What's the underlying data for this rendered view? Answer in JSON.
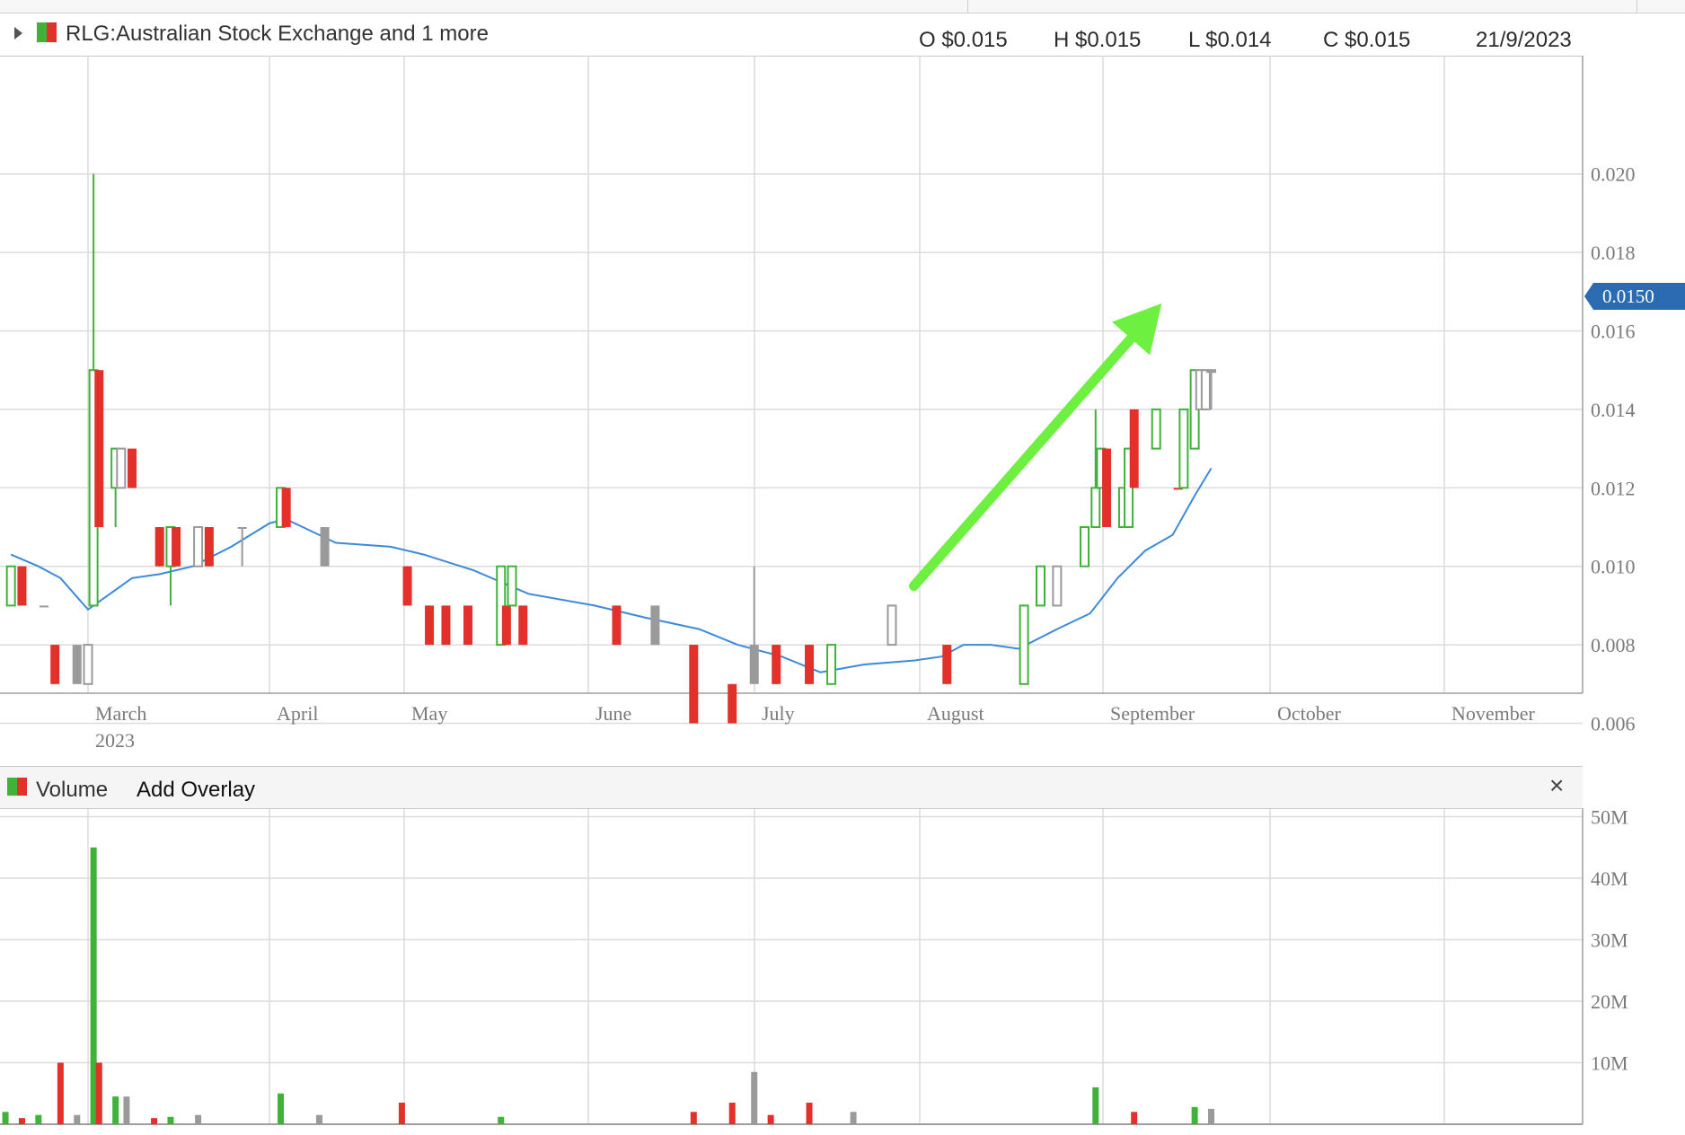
{
  "header": {
    "symbol_title": "RLG:Australian Stock Exchange and 1 more",
    "open": "O $0.015",
    "high": "H $0.015",
    "low": "L $0.014",
    "close": "C $0.015",
    "date": "21/9/2023"
  },
  "volume_panel": {
    "label": "Volume",
    "add_overlay": "Add Overlay",
    "close_symbol": "×"
  },
  "last_price_tag": "0.0150",
  "colors": {
    "up": "#3fb23a",
    "down": "#e2312a",
    "unchanged": "#9a9a9a",
    "moving_average": "#3d8ad8",
    "annotation_arrow": "#6ef040",
    "price_tag": "#2a6bb1",
    "grid": "#dcdcdc"
  },
  "chart_data": [
    {
      "type": "ohlc-candlestick",
      "title": "",
      "x_axis": {
        "tick_labels": [
          "March",
          "April",
          "May",
          "June",
          "July",
          "August",
          "September",
          "October",
          "November"
        ],
        "year_label": "2023"
      },
      "y_axis": {
        "side": "right",
        "ylim": [
          0.0049,
          0.0213
        ],
        "tick_values": [
          0.006,
          0.008,
          0.01,
          0.012,
          0.014,
          0.016,
          0.018,
          0.02
        ],
        "tick_labels": [
          "0.006",
          "0.008",
          "0.010",
          "0.012",
          "0.014",
          "0.016",
          "0.018",
          "0.020"
        ]
      },
      "grid": true,
      "candles": [
        {
          "date": "2023-02-15",
          "open": 0.009,
          "high": 0.01,
          "low": 0.009,
          "close": 0.01,
          "dir": "up"
        },
        {
          "date": "2023-02-17",
          "open": 0.01,
          "high": 0.01,
          "low": 0.009,
          "close": 0.009,
          "dir": "down"
        },
        {
          "date": "2023-02-21",
          "open": 0.009,
          "high": 0.009,
          "low": 0.009,
          "close": 0.009,
          "dir": "flat"
        },
        {
          "date": "2023-02-23",
          "open": 0.008,
          "high": 0.008,
          "low": 0.007,
          "close": 0.007,
          "dir": "down"
        },
        {
          "date": "2023-02-27",
          "open": 0.008,
          "high": 0.008,
          "low": 0.007,
          "close": 0.007,
          "dir": "flat"
        },
        {
          "date": "2023-03-01",
          "open": 0.007,
          "high": 0.008,
          "low": 0.007,
          "close": 0.008,
          "dir": "flat-hollow"
        },
        {
          "date": "2023-03-02",
          "open": 0.009,
          "high": 0.02,
          "low": 0.009,
          "close": 0.015,
          "dir": "up"
        },
        {
          "date": "2023-03-03",
          "open": 0.015,
          "high": 0.015,
          "low": 0.011,
          "close": 0.011,
          "dir": "down"
        },
        {
          "date": "2023-03-06",
          "open": 0.012,
          "high": 0.013,
          "low": 0.011,
          "close": 0.013,
          "dir": "up"
        },
        {
          "date": "2023-03-07",
          "open": 0.013,
          "high": 0.013,
          "low": 0.012,
          "close": 0.012,
          "dir": "flat-hollow"
        },
        {
          "date": "2023-03-09",
          "open": 0.013,
          "high": 0.013,
          "low": 0.012,
          "close": 0.012,
          "dir": "down"
        },
        {
          "date": "2023-03-14",
          "open": 0.011,
          "high": 0.011,
          "low": 0.01,
          "close": 0.01,
          "dir": "down"
        },
        {
          "date": "2023-03-16",
          "open": 0.01,
          "high": 0.011,
          "low": 0.009,
          "close": 0.011,
          "dir": "up"
        },
        {
          "date": "2023-03-17",
          "open": 0.011,
          "high": 0.011,
          "low": 0.01,
          "close": 0.01,
          "dir": "down"
        },
        {
          "date": "2023-03-21",
          "open": 0.01,
          "high": 0.011,
          "low": 0.01,
          "close": 0.011,
          "dir": "flat-hollow"
        },
        {
          "date": "2023-03-23",
          "open": 0.011,
          "high": 0.011,
          "low": 0.01,
          "close": 0.01,
          "dir": "down"
        },
        {
          "date": "2023-03-29",
          "open": 0.011,
          "high": 0.011,
          "low": 0.01,
          "close": 0.011,
          "dir": "flat"
        },
        {
          "date": "2023-04-05",
          "open": 0.011,
          "high": 0.012,
          "low": 0.011,
          "close": 0.012,
          "dir": "up"
        },
        {
          "date": "2023-04-06",
          "open": 0.012,
          "high": 0.012,
          "low": 0.011,
          "close": 0.011,
          "dir": "down"
        },
        {
          "date": "2023-04-13",
          "open": 0.011,
          "high": 0.011,
          "low": 0.01,
          "close": 0.01,
          "dir": "flat"
        },
        {
          "date": "2023-04-28",
          "open": 0.01,
          "high": 0.01,
          "low": 0.009,
          "close": 0.009,
          "dir": "down"
        },
        {
          "date": "2023-05-02",
          "open": 0.009,
          "high": 0.009,
          "low": 0.008,
          "close": 0.008,
          "dir": "down"
        },
        {
          "date": "2023-05-05",
          "open": 0.009,
          "high": 0.009,
          "low": 0.008,
          "close": 0.008,
          "dir": "down"
        },
        {
          "date": "2023-05-09",
          "open": 0.009,
          "high": 0.009,
          "low": 0.008,
          "close": 0.008,
          "dir": "down"
        },
        {
          "date": "2023-05-15",
          "open": 0.008,
          "high": 0.01,
          "low": 0.008,
          "close": 0.01,
          "dir": "up"
        },
        {
          "date": "2023-05-16",
          "open": 0.009,
          "high": 0.009,
          "low": 0.008,
          "close": 0.008,
          "dir": "down"
        },
        {
          "date": "2023-05-17",
          "open": 0.009,
          "high": 0.01,
          "low": 0.009,
          "close": 0.01,
          "dir": "up"
        },
        {
          "date": "2023-05-19",
          "open": 0.009,
          "high": 0.009,
          "low": 0.008,
          "close": 0.008,
          "dir": "down"
        },
        {
          "date": "2023-06-05",
          "open": 0.009,
          "high": 0.009,
          "low": 0.008,
          "close": 0.008,
          "dir": "down"
        },
        {
          "date": "2023-06-12",
          "open": 0.009,
          "high": 0.009,
          "low": 0.008,
          "close": 0.008,
          "dir": "flat"
        },
        {
          "date": "2023-06-19",
          "open": 0.008,
          "high": 0.008,
          "low": 0.006,
          "close": 0.006,
          "dir": "down"
        },
        {
          "date": "2023-06-26",
          "open": 0.007,
          "high": 0.007,
          "low": 0.006,
          "close": 0.006,
          "dir": "down"
        },
        {
          "date": "2023-06-30",
          "open": 0.008,
          "high": 0.01,
          "low": 0.007,
          "close": 0.007,
          "dir": "flat"
        },
        {
          "date": "2023-07-04",
          "open": 0.008,
          "high": 0.008,
          "low": 0.007,
          "close": 0.007,
          "dir": "down"
        },
        {
          "date": "2023-07-10",
          "open": 0.008,
          "high": 0.008,
          "low": 0.007,
          "close": 0.007,
          "dir": "down"
        },
        {
          "date": "2023-07-14",
          "open": 0.007,
          "high": 0.008,
          "low": 0.007,
          "close": 0.008,
          "dir": "up"
        },
        {
          "date": "2023-07-25",
          "open": 0.008,
          "high": 0.009,
          "low": 0.008,
          "close": 0.009,
          "dir": "flat-hollow"
        },
        {
          "date": "2023-08-04",
          "open": 0.008,
          "high": 0.008,
          "low": 0.007,
          "close": 0.007,
          "dir": "down"
        },
        {
          "date": "2023-08-18",
          "open": 0.007,
          "high": 0.009,
          "low": 0.007,
          "close": 0.009,
          "dir": "up"
        },
        {
          "date": "2023-08-21",
          "open": 0.009,
          "high": 0.01,
          "low": 0.009,
          "close": 0.01,
          "dir": "up"
        },
        {
          "date": "2023-08-24",
          "open": 0.009,
          "high": 0.01,
          "low": 0.009,
          "close": 0.01,
          "dir": "flat-hollow"
        },
        {
          "date": "2023-08-29",
          "open": 0.01,
          "high": 0.011,
          "low": 0.01,
          "close": 0.011,
          "dir": "up"
        },
        {
          "date": "2023-08-31",
          "open": 0.011,
          "high": 0.014,
          "low": 0.011,
          "close": 0.012,
          "dir": "up"
        },
        {
          "date": "2023-09-01",
          "open": 0.012,
          "high": 0.013,
          "low": 0.012,
          "close": 0.013,
          "dir": "up"
        },
        {
          "date": "2023-09-02",
          "open": 0.013,
          "high": 0.013,
          "low": 0.011,
          "close": 0.011,
          "dir": "down"
        },
        {
          "date": "2023-09-05",
          "open": 0.011,
          "high": 0.012,
          "low": 0.011,
          "close": 0.012,
          "dir": "up"
        },
        {
          "date": "2023-09-06",
          "open": 0.011,
          "high": 0.013,
          "low": 0.011,
          "close": 0.013,
          "dir": "up"
        },
        {
          "date": "2023-09-07",
          "open": 0.014,
          "high": 0.014,
          "low": 0.012,
          "close": 0.012,
          "dir": "down"
        },
        {
          "date": "2023-09-11",
          "open": 0.013,
          "high": 0.014,
          "low": 0.013,
          "close": 0.014,
          "dir": "up"
        },
        {
          "date": "2023-09-15",
          "open": 0.012,
          "high": 0.012,
          "low": 0.012,
          "close": 0.012,
          "dir": "down"
        },
        {
          "date": "2023-09-16",
          "open": 0.012,
          "high": 0.014,
          "low": 0.012,
          "close": 0.014,
          "dir": "up"
        },
        {
          "date": "2023-09-18",
          "open": 0.013,
          "high": 0.015,
          "low": 0.013,
          "close": 0.015,
          "dir": "up"
        },
        {
          "date": "2023-09-19",
          "open": 0.014,
          "high": 0.015,
          "low": 0.014,
          "close": 0.015,
          "dir": "flat-hollow"
        },
        {
          "date": "2023-09-20",
          "open": 0.014,
          "high": 0.015,
          "low": 0.014,
          "close": 0.015,
          "dir": "flat-hollow"
        },
        {
          "date": "2023-09-21",
          "open": 0.015,
          "high": 0.015,
          "low": 0.014,
          "close": 0.015,
          "dir": "flat-hollow"
        }
      ],
      "moving_average": [
        [
          "2023-02-15",
          0.0103
        ],
        [
          "2023-02-20",
          0.01
        ],
        [
          "2023-02-24",
          0.0097
        ],
        [
          "2023-03-01",
          0.0089
        ],
        [
          "2023-03-05",
          0.0093
        ],
        [
          "2023-03-09",
          0.0097
        ],
        [
          "2023-03-14",
          0.0098
        ],
        [
          "2023-03-20",
          0.01
        ],
        [
          "2023-03-27",
          0.0105
        ],
        [
          "2023-04-03",
          0.0111
        ],
        [
          "2023-04-06",
          0.0112
        ],
        [
          "2023-04-09",
          0.011
        ],
        [
          "2023-04-15",
          0.0106
        ],
        [
          "2023-04-25",
          0.0105
        ],
        [
          "2023-05-01",
          0.0103
        ],
        [
          "2023-05-10",
          0.0099
        ],
        [
          "2023-05-20",
          0.0093
        ],
        [
          "2023-06-01",
          0.009
        ],
        [
          "2023-06-10",
          0.0087
        ],
        [
          "2023-06-20",
          0.0084
        ],
        [
          "2023-06-27",
          0.008
        ],
        [
          "2023-07-05",
          0.0077
        ],
        [
          "2023-07-12",
          0.0073
        ],
        [
          "2023-07-20",
          0.0075
        ],
        [
          "2023-07-29",
          0.0076
        ],
        [
          "2023-08-03",
          0.0077
        ],
        [
          "2023-08-07",
          0.008
        ],
        [
          "2023-08-12",
          0.008
        ],
        [
          "2023-08-17",
          0.0079
        ],
        [
          "2023-08-24",
          0.0084
        ],
        [
          "2023-08-30",
          0.0088
        ],
        [
          "2023-09-04",
          0.0097
        ],
        [
          "2023-09-09",
          0.0104
        ],
        [
          "2023-09-14",
          0.0108
        ],
        [
          "2023-09-18",
          0.0118
        ],
        [
          "2023-09-21",
          0.0125
        ]
      ],
      "annotation_arrow": {
        "from": [
          "2023-07-29",
          0.0095
        ],
        "to": [
          "2023-09-12",
          0.0167
        ]
      }
    },
    {
      "type": "bar",
      "title": "Volume",
      "y_axis": {
        "side": "right",
        "ylim": [
          0,
          52000000
        ],
        "tick_values": [
          10000000,
          20000000,
          30000000,
          40000000,
          50000000
        ],
        "tick_labels": [
          "10M",
          "20M",
          "30M",
          "40M",
          "50M"
        ]
      },
      "grid": true,
      "bars": [
        {
          "date": "2023-02-14",
          "value": 2000000,
          "dir": "up"
        },
        {
          "date": "2023-02-17",
          "value": 1000000,
          "dir": "down"
        },
        {
          "date": "2023-02-20",
          "value": 1500000,
          "dir": "up"
        },
        {
          "date": "2023-02-24",
          "value": 10000000,
          "dir": "down"
        },
        {
          "date": "2023-02-27",
          "value": 1500000,
          "dir": "flat"
        },
        {
          "date": "2023-03-02",
          "value": 45000000,
          "dir": "up"
        },
        {
          "date": "2023-03-03",
          "value": 10000000,
          "dir": "down"
        },
        {
          "date": "2023-03-06",
          "value": 4500000,
          "dir": "up"
        },
        {
          "date": "2023-03-08",
          "value": 4500000,
          "dir": "flat"
        },
        {
          "date": "2023-03-13",
          "value": 1000000,
          "dir": "down"
        },
        {
          "date": "2023-03-16",
          "value": 1200000,
          "dir": "up"
        },
        {
          "date": "2023-03-21",
          "value": 1500000,
          "dir": "flat"
        },
        {
          "date": "2023-04-05",
          "value": 5000000,
          "dir": "up"
        },
        {
          "date": "2023-04-12",
          "value": 1500000,
          "dir": "flat"
        },
        {
          "date": "2023-04-27",
          "value": 3500000,
          "dir": "down"
        },
        {
          "date": "2023-05-15",
          "value": 1200000,
          "dir": "up"
        },
        {
          "date": "2023-06-19",
          "value": 2000000,
          "dir": "down"
        },
        {
          "date": "2023-06-26",
          "value": 3500000,
          "dir": "down"
        },
        {
          "date": "2023-06-30",
          "value": 8500000,
          "dir": "flat"
        },
        {
          "date": "2023-07-03",
          "value": 1500000,
          "dir": "down"
        },
        {
          "date": "2023-07-10",
          "value": 3500000,
          "dir": "down"
        },
        {
          "date": "2023-07-18",
          "value": 2000000,
          "dir": "flat"
        },
        {
          "date": "2023-08-31",
          "value": 6000000,
          "dir": "up"
        },
        {
          "date": "2023-09-07",
          "value": 2000000,
          "dir": "down"
        },
        {
          "date": "2023-09-18",
          "value": 2800000,
          "dir": "up"
        },
        {
          "date": "2023-09-21",
          "value": 2500000,
          "dir": "flat"
        }
      ]
    }
  ]
}
